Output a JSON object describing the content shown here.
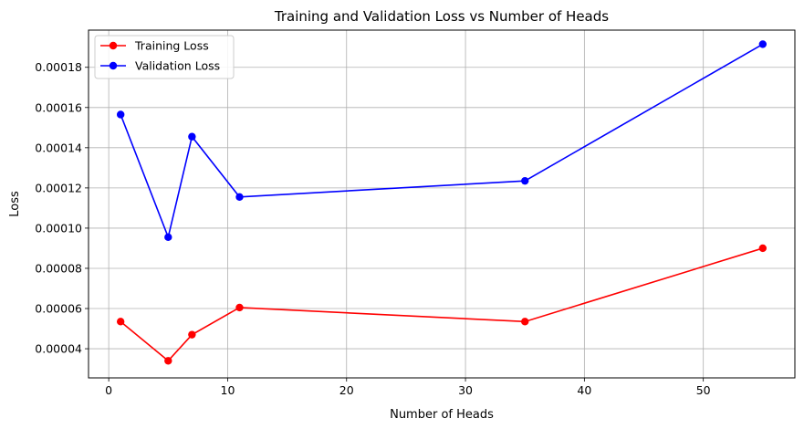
{
  "chart_data": {
    "type": "line",
    "title": "Training and Validation Loss vs Number of Heads",
    "xlabel": "Number of Heads",
    "ylabel": "Loss",
    "xlim": [
      -1.7,
      57.7
    ],
    "ylim": [
      2.55e-05,
      0.0001985
    ],
    "xticks": [
      0,
      10,
      20,
      30,
      40,
      50
    ],
    "xtick_labels": [
      "0",
      "10",
      "20",
      "30",
      "40",
      "50"
    ],
    "yticks": [
      4e-05,
      6e-05,
      8e-05,
      0.0001,
      0.00012,
      0.00014,
      0.00016,
      0.00018
    ],
    "ytick_labels": [
      "0.00004",
      "0.00006",
      "0.00008",
      "0.00010",
      "0.00012",
      "0.00014",
      "0.00016",
      "0.00018"
    ],
    "grid": true,
    "legend_position": "top-left",
    "x": [
      1,
      5,
      7,
      11,
      35,
      55
    ],
    "series": [
      {
        "name": "Training Loss",
        "color": "#ff0000",
        "values": [
          5.35e-05,
          3.4e-05,
          4.7e-05,
          6.05e-05,
          5.35e-05,
          9e-05
        ]
      },
      {
        "name": "Validation Loss",
        "color": "#0000ff",
        "values": [
          0.0001565,
          9.55e-05,
          0.0001455,
          0.0001155,
          0.0001235,
          0.0001915
        ]
      }
    ]
  }
}
